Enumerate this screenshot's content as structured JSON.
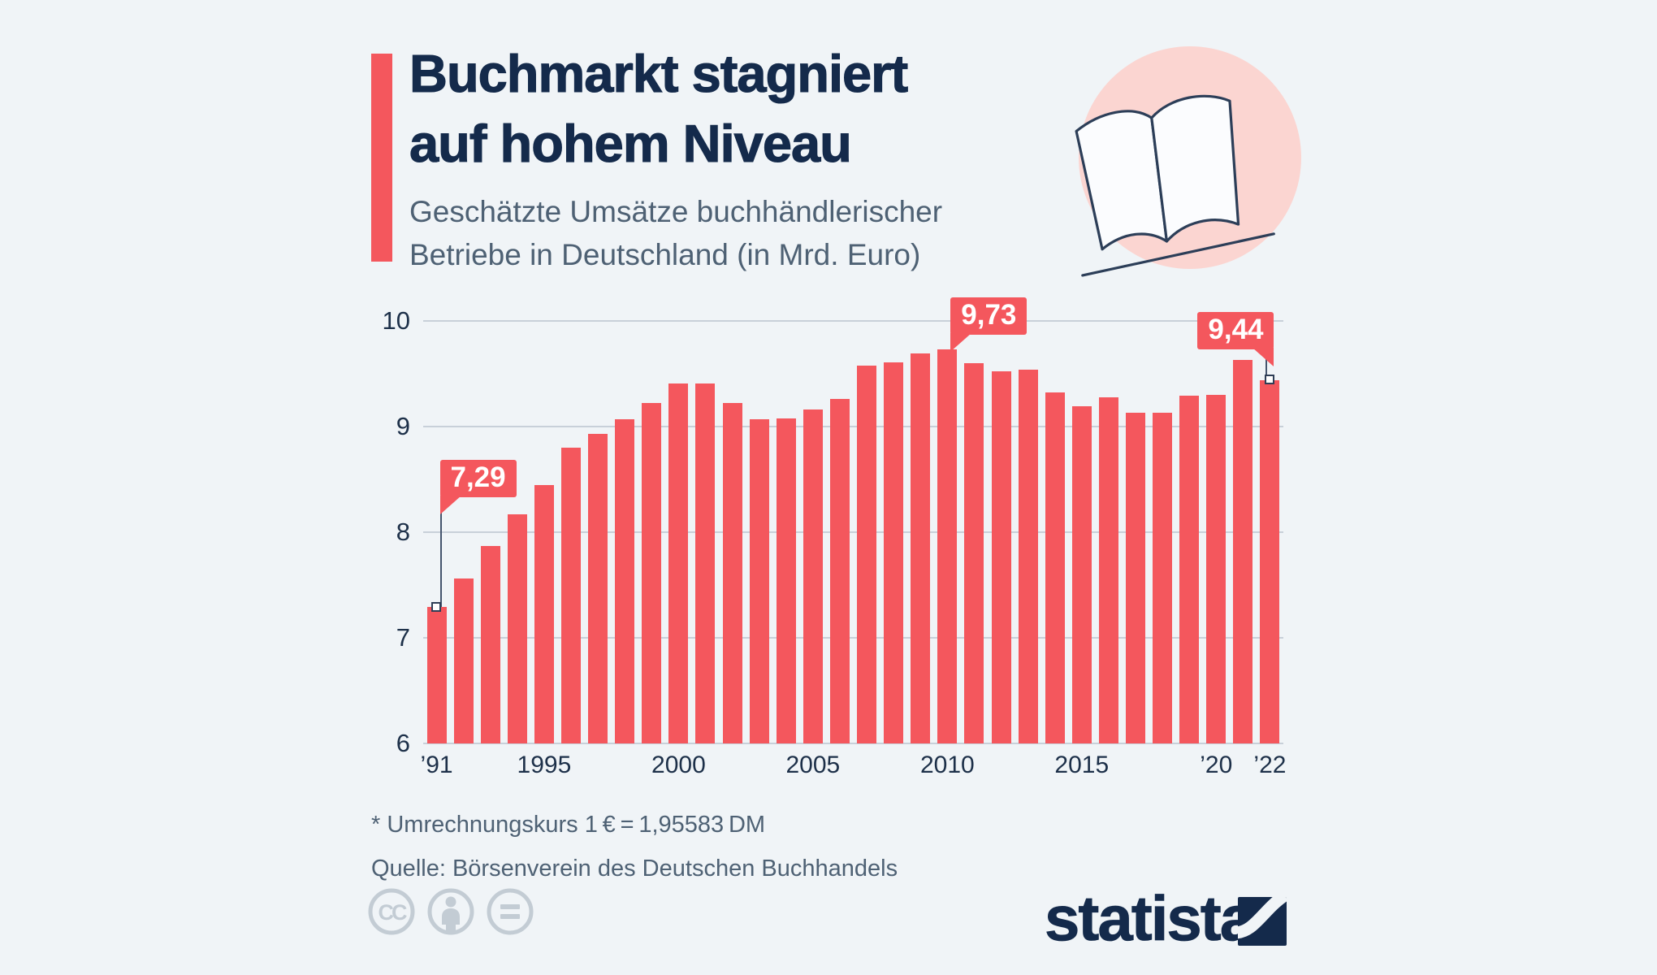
{
  "header": {
    "title_line1": "Buchmarkt stagniert",
    "title_line2": "auf hohem Niveau",
    "subtitle_line1": "Geschätzte Umsätze buchhändlerischer",
    "subtitle_line2": "Betriebe in Deutschland (in Mrd. Euro)"
  },
  "chart_data": {
    "type": "bar",
    "title": "Geschätzte Umsätze buchhändlerischer Betriebe in Deutschland (in Mrd. Euro)",
    "xlabel": "",
    "ylabel": "Mrd. Euro",
    "ylim": [
      6,
      10
    ],
    "yticks": [
      6,
      7,
      8,
      9,
      10
    ],
    "grid": true,
    "legend": false,
    "bar_color": "#F4575D",
    "categories": [
      1991,
      1992,
      1993,
      1994,
      1995,
      1996,
      1997,
      1998,
      1999,
      2000,
      2001,
      2002,
      2003,
      2004,
      2005,
      2006,
      2007,
      2008,
      2009,
      2010,
      2011,
      2012,
      2013,
      2014,
      2015,
      2016,
      2017,
      2018,
      2019,
      2020,
      2021,
      2022
    ],
    "values": [
      7.29,
      7.56,
      7.87,
      8.17,
      8.45,
      8.8,
      8.93,
      9.07,
      9.22,
      9.41,
      9.41,
      9.22,
      9.07,
      9.08,
      9.16,
      9.26,
      9.58,
      9.61,
      9.69,
      9.73,
      9.6,
      9.52,
      9.54,
      9.32,
      9.19,
      9.28,
      9.13,
      9.13,
      9.29,
      9.3,
      9.63,
      9.44
    ],
    "xtick_labels": [
      {
        "index": 0,
        "label": "’91"
      },
      {
        "index": 4,
        "label": "1995"
      },
      {
        "index": 9,
        "label": "2000"
      },
      {
        "index": 14,
        "label": "2005"
      },
      {
        "index": 19,
        "label": "2010"
      },
      {
        "index": 24,
        "label": "2015"
      },
      {
        "index": 29,
        "label": "’20"
      },
      {
        "index": 31,
        "label": "’22"
      }
    ],
    "callouts": [
      {
        "year": 1991,
        "label": "7,29"
      },
      {
        "year": 2010,
        "label": "9,73"
      },
      {
        "year": 2022,
        "label": "9,44"
      }
    ]
  },
  "footnotes": {
    "line1": "* Umrechnungskurs 1 € = 1,95583 DM",
    "line2": "Quelle: Börsenverein des Deutschen Buchhandels"
  },
  "branding": {
    "logo_text": "statista"
  },
  "license_icons": [
    "cc",
    "attribution",
    "no-derivatives"
  ],
  "colors": {
    "background": "#F0F4F7",
    "accent_red": "#F4575D",
    "title_navy": "#142A4B",
    "axis_navy": "#1D3049",
    "text_slate": "#4E6174",
    "gridline": "#C8D0D9",
    "pink_circle": "#FBD5D1",
    "book_outline": "#2C3E58",
    "license_gray": "#C3CCD4"
  }
}
